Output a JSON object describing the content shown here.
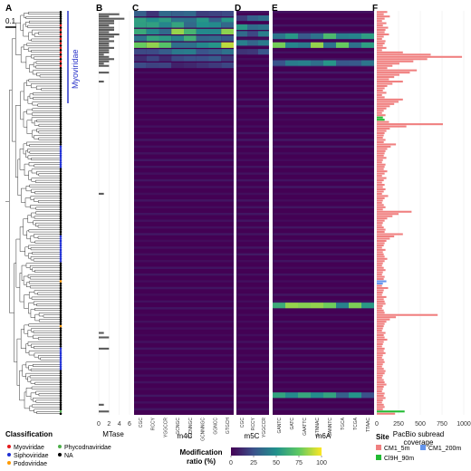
{
  "panel_labels": [
    "A",
    "B",
    "C",
    "D",
    "E",
    "F"
  ],
  "tree": {
    "scale_label": "0.1",
    "clade_label": "Myoviridae",
    "clade_color": "#2b35c9"
  },
  "classification_legend": {
    "title": "Classification",
    "items": [
      {
        "label": "Myoviridae",
        "color": "#e41a1c"
      },
      {
        "label": "Phycodnaviridae",
        "color": "#4daf4a"
      },
      {
        "label": "Siphoviridae",
        "color": "#1f2fd4"
      },
      {
        "label": "NA",
        "color": "#000000"
      },
      {
        "label": "Podoviridae",
        "color": "#ff9a00"
      }
    ]
  },
  "heatmap_legend": {
    "title_line1": "Modification",
    "title_line2": "ratio (%)",
    "ticks": [
      "0",
      "25",
      "50",
      "75",
      "100"
    ],
    "colors": [
      "#440154",
      "#3b528b",
      "#21918c",
      "#5ec962",
      "#fde725"
    ]
  },
  "site_legend": {
    "title": "Site",
    "items": [
      {
        "label": "CM1_5m",
        "color": "#f08080"
      },
      {
        "label": "CM1_200m",
        "color": "#6495ed"
      },
      {
        "label": "Cl9H_90m",
        "color": "#22bb33"
      }
    ]
  },
  "chart_data": [
    {
      "panel": "B",
      "type": "bar",
      "orientation": "horizontal",
      "xlabel": "MTase",
      "xticks": [
        "0",
        "2",
        "4",
        "6"
      ],
      "xlim": [
        0,
        6
      ],
      "bar_color": "#5a5a5a",
      "values": [
        0,
        4,
        2,
        5,
        3,
        3,
        2,
        3,
        3,
        2,
        4,
        3,
        2,
        3,
        2,
        2,
        3,
        2,
        2,
        1,
        2,
        3,
        2,
        1,
        2,
        0,
        0,
        2,
        0,
        0,
        0,
        1,
        0,
        0,
        0,
        0,
        0,
        0,
        0,
        0,
        0,
        0,
        0,
        0,
        0,
        0,
        0,
        0,
        0,
        0,
        0,
        0,
        0,
        0,
        0,
        0,
        0,
        0,
        0,
        0,
        0,
        0,
        0,
        0,
        0,
        0,
        0,
        0,
        0,
        0,
        0,
        0,
        0,
        0,
        0,
        0,
        0,
        0,
        0,
        0,
        0,
        1,
        0,
        0,
        0,
        0,
        0,
        0,
        0,
        0,
        0,
        0,
        0,
        0,
        0,
        0,
        0,
        0,
        0,
        0,
        0,
        0,
        0,
        0,
        0,
        0,
        0,
        0,
        0,
        0,
        0,
        0,
        0,
        0,
        0,
        0,
        0,
        0,
        0,
        0,
        0,
        0,
        0,
        0,
        0,
        0,
        0,
        0,
        0,
        0,
        0,
        0,
        0,
        0,
        0,
        0,
        0,
        0,
        0,
        0,
        0,
        0,
        0,
        1,
        0,
        2,
        0,
        0,
        0,
        0,
        2,
        0,
        0,
        0,
        0,
        0,
        0,
        0,
        0,
        0,
        0,
        0,
        0,
        0,
        0,
        0,
        0,
        0,
        0,
        0,
        0,
        0,
        0,
        0,
        0,
        1,
        0,
        0,
        2,
        0
      ]
    },
    {
      "panel": "C",
      "type": "heatmap",
      "group_label": "m4C",
      "columns": [
        "CGC",
        "RCCY",
        "YGGCCR",
        "GCNGC",
        "GCNNGC",
        "GCNNNGC",
        "GGNCC",
        "GTGCH"
      ],
      "zlim": [
        0,
        100
      ],
      "hot_rows": [
        [
          0,
          35
        ],
        [
          3,
          60
        ],
        [
          5,
          75
        ],
        [
          8,
          85
        ],
        [
          11,
          70
        ],
        [
          14,
          90
        ],
        [
          17,
          55
        ],
        [
          20,
          30
        ],
        [
          23,
          25
        ]
      ]
    },
    {
      "panel": "D",
      "type": "heatmap",
      "group_label": "m5C",
      "columns": [
        "CGC",
        "RCCY",
        "YGGCCR"
      ],
      "zlim": [
        0,
        100
      ],
      "hot_rows": [
        [
          2,
          40
        ],
        [
          6,
          55
        ],
        [
          9,
          45
        ],
        [
          13,
          60
        ],
        [
          17,
          35
        ]
      ]
    },
    {
      "panel": "E",
      "type": "heatmap",
      "group_label": "m6A",
      "columns": [
        "GANTC",
        "GATC",
        "GAATTC",
        "GTNNAC",
        "GANNTC",
        "TGCA",
        "TCGA",
        "TTAAC"
      ],
      "zlim": [
        0,
        100
      ],
      "hot_rows": [
        [
          10,
          70
        ],
        [
          14,
          85
        ],
        [
          22,
          55
        ],
        [
          130,
          95
        ],
        [
          170,
          60
        ]
      ]
    },
    {
      "panel": "F",
      "type": "bar",
      "orientation": "horizontal",
      "xlabel_line1": "PacBio subread",
      "xlabel_line2": "coverage",
      "xticks": [
        "0",
        "250",
        "500",
        "750",
        "1000"
      ],
      "xlim": [
        0,
        1000
      ],
      "series": [
        {
          "name": "CM1_5m",
          "color": "#f08080"
        },
        {
          "name": "CM1_200m",
          "color": "#6495ed"
        },
        {
          "name": "Cl9H_90m",
          "color": "#22bb33"
        }
      ],
      "values": [
        120,
        80,
        150,
        90,
        60,
        110,
        70,
        130,
        100,
        90,
        140,
        80,
        60,
        100,
        90,
        70,
        110,
        60,
        300,
        620,
        980,
        580,
        420,
        260,
        180,
        120,
        460,
        380,
        260,
        200,
        140,
        300,
        180,
        120,
        90,
        70,
        110,
        60,
        90,
        300,
        250,
        200,
        150,
        110,
        80,
        60,
        100,
        70,
        90,
        140,
        760,
        340,
        150,
        110,
        90,
        80,
        70,
        100,
        80,
        220,
        160,
        120,
        100,
        90,
        80,
        110,
        70,
        60,
        100,
        90,
        80,
        120,
        90,
        60,
        110,
        80,
        60,
        90,
        70,
        100,
        80,
        60,
        130,
        90,
        70,
        60,
        80,
        100,
        70,
        400,
        250,
        180,
        120,
        90,
        70,
        60,
        80,
        100,
        90,
        300,
        200,
        150,
        110,
        90,
        80,
        60,
        100,
        70,
        80,
        90,
        120,
        90,
        70,
        60,
        80,
        100,
        70,
        60,
        90,
        80,
        110,
        70,
        60,
        130,
        80,
        70,
        60,
        110,
        80,
        90,
        100,
        70,
        60,
        80,
        90,
        700,
        220,
        150,
        110,
        90,
        80,
        70,
        60,
        100,
        80,
        90,
        120,
        80,
        70,
        60,
        90,
        80,
        100,
        70,
        60,
        80,
        90,
        70,
        60,
        80,
        100,
        90,
        70,
        60,
        80,
        90,
        110,
        80,
        70,
        60,
        90,
        80,
        100,
        70,
        60,
        80,
        90,
        70,
        320,
        210
      ],
      "site_index": {
        "47": 2,
        "48": 2,
        "120": 1,
        "121": 1,
        "178": 2
      }
    }
  ]
}
